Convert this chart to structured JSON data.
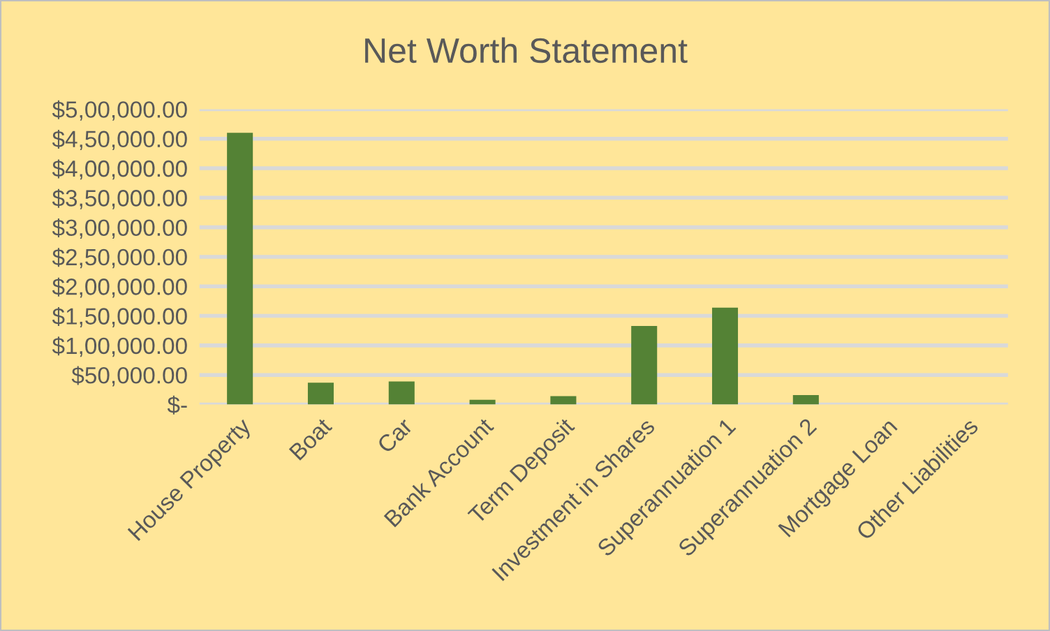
{
  "chart_data": {
    "type": "bar",
    "title": "Net Worth Statement",
    "categories": [
      "House Property",
      "Boat",
      "Car",
      "Bank Account",
      "Term Deposit",
      "Investment in Shares",
      "Superannuation 1",
      "Superannuation 2",
      "Mortgage Loan",
      "Other Liabilities"
    ],
    "values": [
      460000,
      37000,
      39000,
      8000,
      14000,
      133000,
      164000,
      16000,
      0,
      0
    ],
    "color": "#548235",
    "ylim": [
      0,
      500000
    ],
    "yticks": [
      {
        "value": 0,
        "label": "$-"
      },
      {
        "value": 50000,
        "label": "$50,000.00"
      },
      {
        "value": 100000,
        "label": "$1,00,000.00"
      },
      {
        "value": 150000,
        "label": "$1,50,000.00"
      },
      {
        "value": 200000,
        "label": "$2,00,000.00"
      },
      {
        "value": 250000,
        "label": "$2,50,000.00"
      },
      {
        "value": 300000,
        "label": "$3,00,000.00"
      },
      {
        "value": 350000,
        "label": "$3,50,000.00"
      },
      {
        "value": 400000,
        "label": "$4,00,000.00"
      },
      {
        "value": 450000,
        "label": "$4,50,000.00"
      },
      {
        "value": 500000,
        "label": "$5,00,000.00"
      }
    ],
    "grid": "y"
  }
}
